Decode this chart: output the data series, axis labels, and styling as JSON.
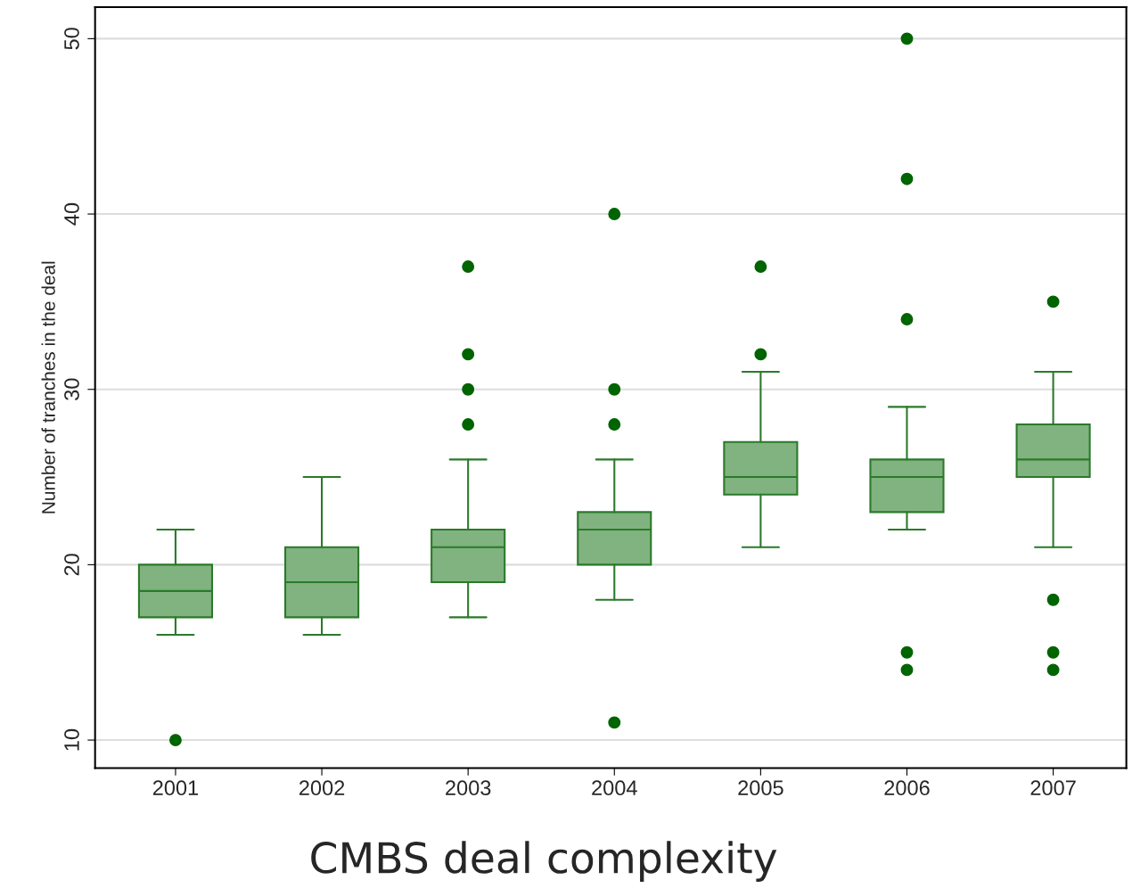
{
  "chart_data": {
    "type": "box",
    "title": "CMBS deal complexity",
    "ylabel": "Number of tranches in the deal",
    "categories": [
      "2001",
      "2002",
      "2003",
      "2004",
      "2005",
      "2006",
      "2007"
    ],
    "boxes": [
      {
        "low": 16,
        "q1": 17,
        "median": 18.5,
        "q3": 20,
        "high": 22,
        "outliers": [
          10
        ]
      },
      {
        "low": 16,
        "q1": 17,
        "median": 19,
        "q3": 21,
        "high": 25
      },
      {
        "low": 17,
        "q1": 19,
        "median": 21,
        "q3": 22,
        "high": 26,
        "outliers": [
          28,
          30,
          32,
          37
        ]
      },
      {
        "low": 18,
        "q1": 20,
        "median": 22,
        "q3": 23,
        "high": 26,
        "outliers": [
          11,
          28,
          30,
          40
        ]
      },
      {
        "low": 21,
        "q1": 24,
        "median": 25,
        "q3": 27,
        "high": 31,
        "outliers": [
          32,
          37
        ]
      },
      {
        "low": 22,
        "q1": 23,
        "median": 25,
        "q3": 26,
        "high": 29,
        "outliers": [
          14,
          15,
          34,
          42,
          50
        ]
      },
      {
        "low": 21,
        "q1": 25,
        "median": 26,
        "q3": 28,
        "high": 31,
        "outliers": [
          14,
          15,
          18,
          35
        ]
      }
    ],
    "color": "#80b380",
    "ylim": [
      8.4,
      51.8
    ],
    "yticks": [
      10,
      20,
      30,
      40,
      50
    ],
    "grid": "y",
    "legend": false
  }
}
